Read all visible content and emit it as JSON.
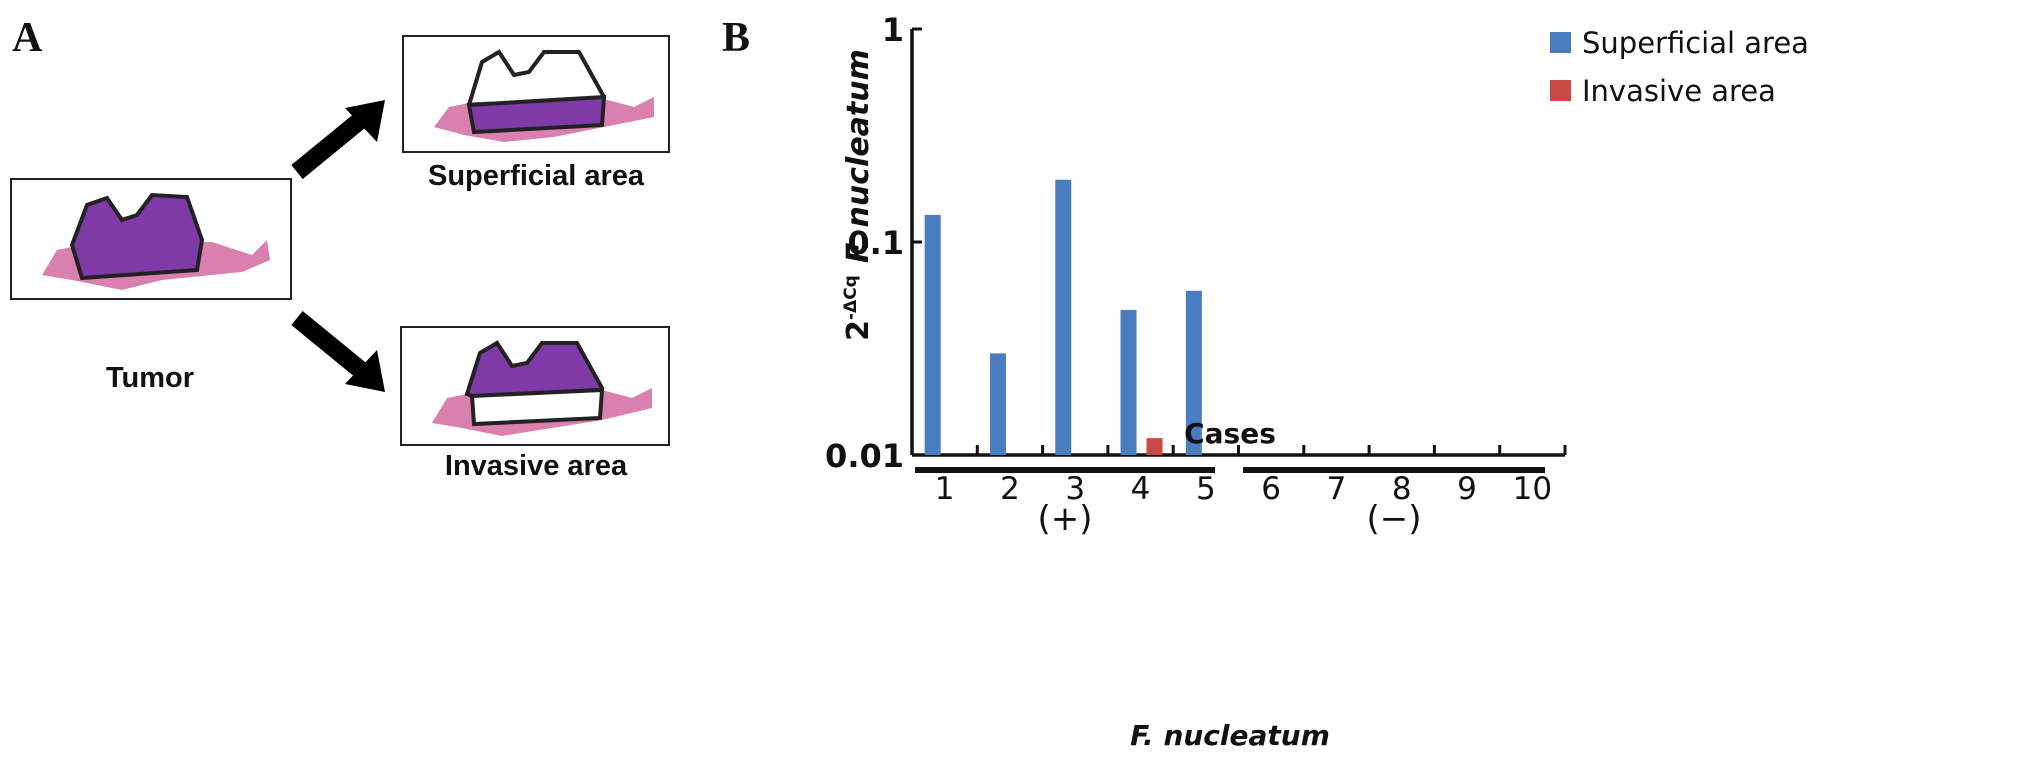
{
  "panel_a": {
    "letter": "A",
    "tumor_label": "Tumor",
    "superficial_label": "Superficial area",
    "invasive_label": "Invasive area"
  },
  "panel_b": {
    "letter": "B"
  },
  "chart_data": {
    "type": "bar",
    "title": "",
    "xlabel": "Cases",
    "ylabel_prefix": "2",
    "ylabel_superscript": "-ΔCq",
    "ylabel_italic": "F. nucleatum",
    "yscale": "log",
    "ylim": [
      0.01,
      1
    ],
    "yticks": [
      "0.01",
      "0.1",
      "1"
    ],
    "ytick_values": [
      0.01,
      0.1,
      1
    ],
    "categories": [
      "1",
      "2",
      "3",
      "4",
      "5",
      "6",
      "7",
      "8",
      "9",
      "10"
    ],
    "series": [
      {
        "name": "Superficial area",
        "color": "#4a7cc0",
        "values": [
          0.134,
          0.03,
          0.196,
          0.048,
          0.059,
          null,
          null,
          null,
          null,
          null
        ]
      },
      {
        "name": "Invasive area",
        "color": "#c94848",
        "values": [
          null,
          null,
          null,
          0.012,
          null,
          null,
          null,
          null,
          null,
          null
        ]
      }
    ],
    "legend_position": "top-right",
    "groups": [
      {
        "label": "(+)",
        "cases": [
          "1",
          "2",
          "3",
          "4",
          "5"
        ]
      },
      {
        "label": "(−)",
        "cases": [
          "6",
          "7",
          "8",
          "9",
          "10"
        ]
      }
    ],
    "group_axis_label": "F. nucleatum"
  }
}
